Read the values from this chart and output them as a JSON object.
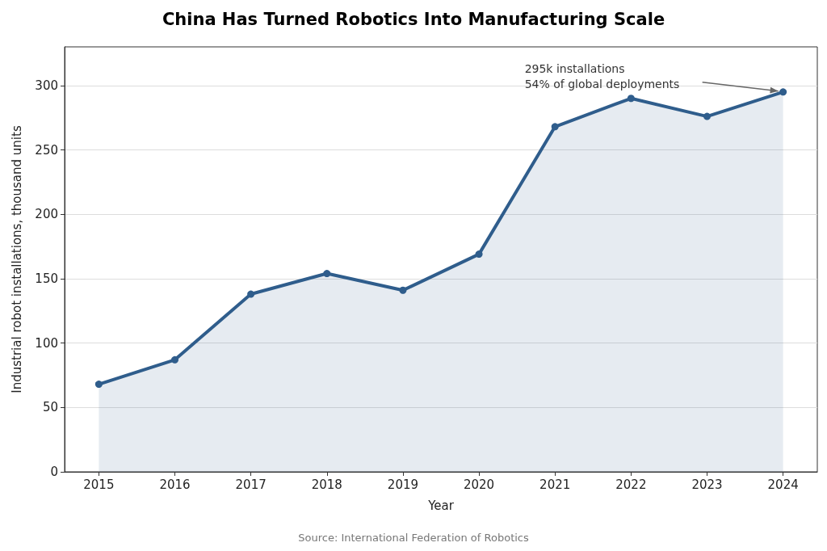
{
  "chart_data": {
    "type": "area",
    "title": "China Has Turned Robotics Into Manufacturing Scale",
    "xlabel": "Year",
    "ylabel": "Industrial robot installations, thousand units",
    "x": [
      2015,
      2016,
      2017,
      2018,
      2019,
      2020,
      2021,
      2022,
      2023,
      2024
    ],
    "series": [
      {
        "color": "#2f5d8c",
        "values": [
          68,
          87,
          138,
          154,
          141,
          169,
          268,
          290,
          276,
          295
        ]
      }
    ],
    "xlim": [
      2014.55,
      2024.45
    ],
    "xticks": [
      2015,
      2016,
      2017,
      2018,
      2019,
      2020,
      2021,
      2022,
      2023,
      2024
    ],
    "ylim": [
      0,
      330
    ],
    "yticks": [
      0,
      50,
      100,
      150,
      200,
      250,
      300
    ],
    "grid": "y",
    "marker": "circle",
    "line_style": "solid",
    "annotations": [
      "295k installations\n54% of global deployments",
      "Source: International Federation of Robotics"
    ]
  }
}
